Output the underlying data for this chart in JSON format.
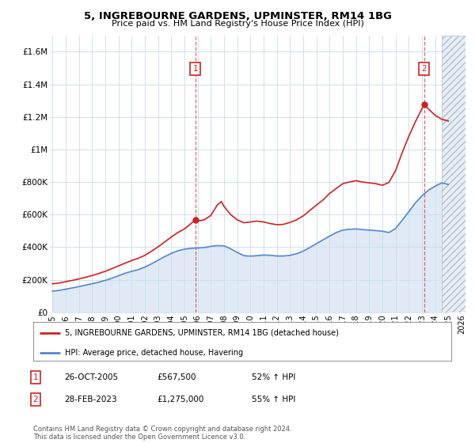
{
  "title": "5, INGREBOURNE GARDENS, UPMINSTER, RM14 1BG",
  "subtitle": "Price paid vs. HM Land Registry's House Price Index (HPI)",
  "ylim": [
    0,
    1700000
  ],
  "yticks": [
    0,
    200000,
    400000,
    600000,
    800000,
    1000000,
    1200000,
    1400000,
    1600000
  ],
  "ytick_labels": [
    "£0",
    "£200K",
    "£400K",
    "£600K",
    "£800K",
    "£1M",
    "£1.2M",
    "£1.4M",
    "£1.6M"
  ],
  "xmin_year": 1995,
  "xmax_year": 2026,
  "xticks": [
    1995,
    1996,
    1997,
    1998,
    1999,
    2000,
    2001,
    2002,
    2003,
    2004,
    2005,
    2006,
    2007,
    2008,
    2009,
    2010,
    2011,
    2012,
    2013,
    2014,
    2015,
    2016,
    2017,
    2018,
    2019,
    2020,
    2021,
    2022,
    2023,
    2024,
    2025,
    2026
  ],
  "hpi_color": "#5588cc",
  "hpi_fill_color": "#ccddf0",
  "price_color": "#cc2222",
  "dashed_line_color": "#dd4444",
  "transaction1": {
    "date_x": 2005.82,
    "price": 567500,
    "label": "1"
  },
  "transaction2": {
    "date_x": 2023.16,
    "price": 1275000,
    "label": "2"
  },
  "legend_house_label": "5, INGREBOURNE GARDENS, UPMINSTER, RM14 1BG (detached house)",
  "legend_hpi_label": "HPI: Average price, detached house, Havering",
  "note1_label": "1",
  "note1_date": "26-OCT-2005",
  "note1_price": "£567,500",
  "note1_pct": "52% ↑ HPI",
  "note2_label": "2",
  "note2_date": "28-FEB-2023",
  "note2_price": "£1,275,000",
  "note2_pct": "55% ↑ HPI",
  "footer": "Contains HM Land Registry data © Crown copyright and database right 2024.\nThis data is licensed under the Open Government Licence v3.0.",
  "hpi_data": {
    "years": [
      1995.0,
      1995.5,
      1996.0,
      1996.5,
      1997.0,
      1997.5,
      1998.0,
      1998.5,
      1999.0,
      1999.5,
      2000.0,
      2000.5,
      2001.0,
      2001.5,
      2002.0,
      2002.5,
      2003.0,
      2003.5,
      2004.0,
      2004.5,
      2005.0,
      2005.5,
      2006.0,
      2006.5,
      2007.0,
      2007.5,
      2008.0,
      2008.5,
      2009.0,
      2009.5,
      2010.0,
      2010.5,
      2011.0,
      2011.5,
      2012.0,
      2012.5,
      2013.0,
      2013.5,
      2014.0,
      2014.5,
      2015.0,
      2015.5,
      2016.0,
      2016.5,
      2017.0,
      2017.5,
      2018.0,
      2018.5,
      2019.0,
      2019.5,
      2020.0,
      2020.5,
      2021.0,
      2021.5,
      2022.0,
      2022.5,
      2023.0,
      2023.5,
      2024.0,
      2024.5,
      2025.0
    ],
    "values": [
      130000,
      135000,
      142000,
      150000,
      158000,
      167000,
      176000,
      185000,
      196000,
      210000,
      225000,
      240000,
      252000,
      262000,
      278000,
      298000,
      320000,
      342000,
      362000,
      378000,
      388000,
      393000,
      395000,
      398000,
      405000,
      410000,
      408000,
      390000,
      368000,
      348000,
      345000,
      348000,
      352000,
      350000,
      346000,
      346000,
      350000,
      360000,
      376000,
      398000,
      422000,
      445000,
      468000,
      490000,
      505000,
      510000,
      512000,
      508000,
      505000,
      502000,
      498000,
      490000,
      515000,
      565000,
      618000,
      672000,
      715000,
      750000,
      775000,
      795000,
      785000
    ]
  },
  "price_data": {
    "years": [
      1995.0,
      1995.5,
      1996.0,
      1996.5,
      1997.0,
      1997.5,
      1998.0,
      1998.5,
      1999.0,
      1999.5,
      2000.0,
      2000.5,
      2001.0,
      2001.5,
      2002.0,
      2002.5,
      2003.0,
      2003.5,
      2004.0,
      2004.5,
      2005.0,
      2005.5,
      2005.82,
      2006.0,
      2006.5,
      2007.0,
      2007.5,
      2007.8,
      2008.0,
      2008.5,
      2009.0,
      2009.5,
      2010.0,
      2010.5,
      2011.0,
      2011.5,
      2012.0,
      2012.5,
      2013.0,
      2013.5,
      2014.0,
      2014.5,
      2015.0,
      2015.5,
      2016.0,
      2016.5,
      2017.0,
      2017.5,
      2018.0,
      2018.5,
      2019.0,
      2019.5,
      2020.0,
      2020.5,
      2021.0,
      2021.5,
      2022.0,
      2022.5,
      2023.0,
      2023.16,
      2023.5,
      2024.0,
      2024.5,
      2025.0
    ],
    "values": [
      175000,
      180000,
      188000,
      196000,
      205000,
      215000,
      226000,
      238000,
      252000,
      268000,
      285000,
      302000,
      318000,
      332000,
      350000,
      375000,
      402000,
      432000,
      462000,
      490000,
      512000,
      545000,
      567500,
      560000,
      568000,
      595000,
      660000,
      680000,
      650000,
      600000,
      568000,
      550000,
      555000,
      560000,
      555000,
      545000,
      538000,
      540000,
      552000,
      568000,
      592000,
      625000,
      658000,
      690000,
      730000,
      760000,
      790000,
      800000,
      808000,
      800000,
      795000,
      790000,
      780000,
      798000,
      870000,
      980000,
      1080000,
      1170000,
      1250000,
      1275000,
      1248000,
      1210000,
      1185000,
      1175000
    ]
  },
  "bg_color": "#ffffff",
  "grid_color": "#c8daea",
  "hatch_color": "#aaaaaa",
  "label_box_color": "#cc2222"
}
